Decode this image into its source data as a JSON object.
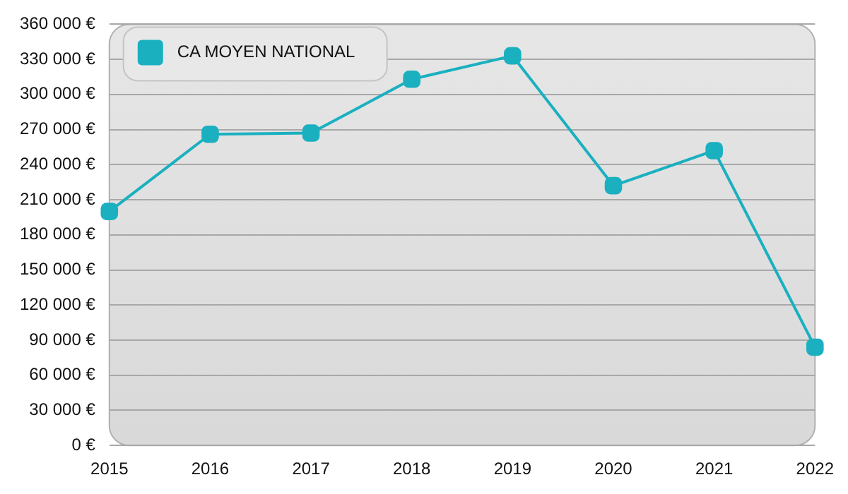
{
  "chart_data": {
    "type": "line",
    "categories": [
      "2015",
      "2016",
      "2017",
      "2018",
      "2019",
      "2020",
      "2021",
      "2022"
    ],
    "series": [
      {
        "name": "CA MOYEN NATIONAL",
        "color": "#1ab0c0",
        "values": [
          200000,
          266000,
          267000,
          313000,
          333000,
          222000,
          252000,
          84000
        ]
      }
    ],
    "ylim": [
      0,
      360000
    ],
    "yticks": [
      {
        "value": 0,
        "label": "0 €"
      },
      {
        "value": 30000,
        "label": "30 000 €"
      },
      {
        "value": 60000,
        "label": "60 000 €"
      },
      {
        "value": 90000,
        "label": "90 000 €"
      },
      {
        "value": 120000,
        "label": "120 000 €"
      },
      {
        "value": 150000,
        "label": "150 000 €"
      },
      {
        "value": 180000,
        "label": "180 000 €"
      },
      {
        "value": 210000,
        "label": "210 000 €"
      },
      {
        "value": 240000,
        "label": "240 000 €"
      },
      {
        "value": 270000,
        "label": "270 000 €"
      },
      {
        "value": 300000,
        "label": "300 000 €"
      },
      {
        "value": 330000,
        "label": "330 000 €"
      },
      {
        "value": 360000,
        "label": "360 000 €"
      }
    ],
    "grid": "y",
    "legend": "top left",
    "marker": "square",
    "line_style": "solid"
  }
}
